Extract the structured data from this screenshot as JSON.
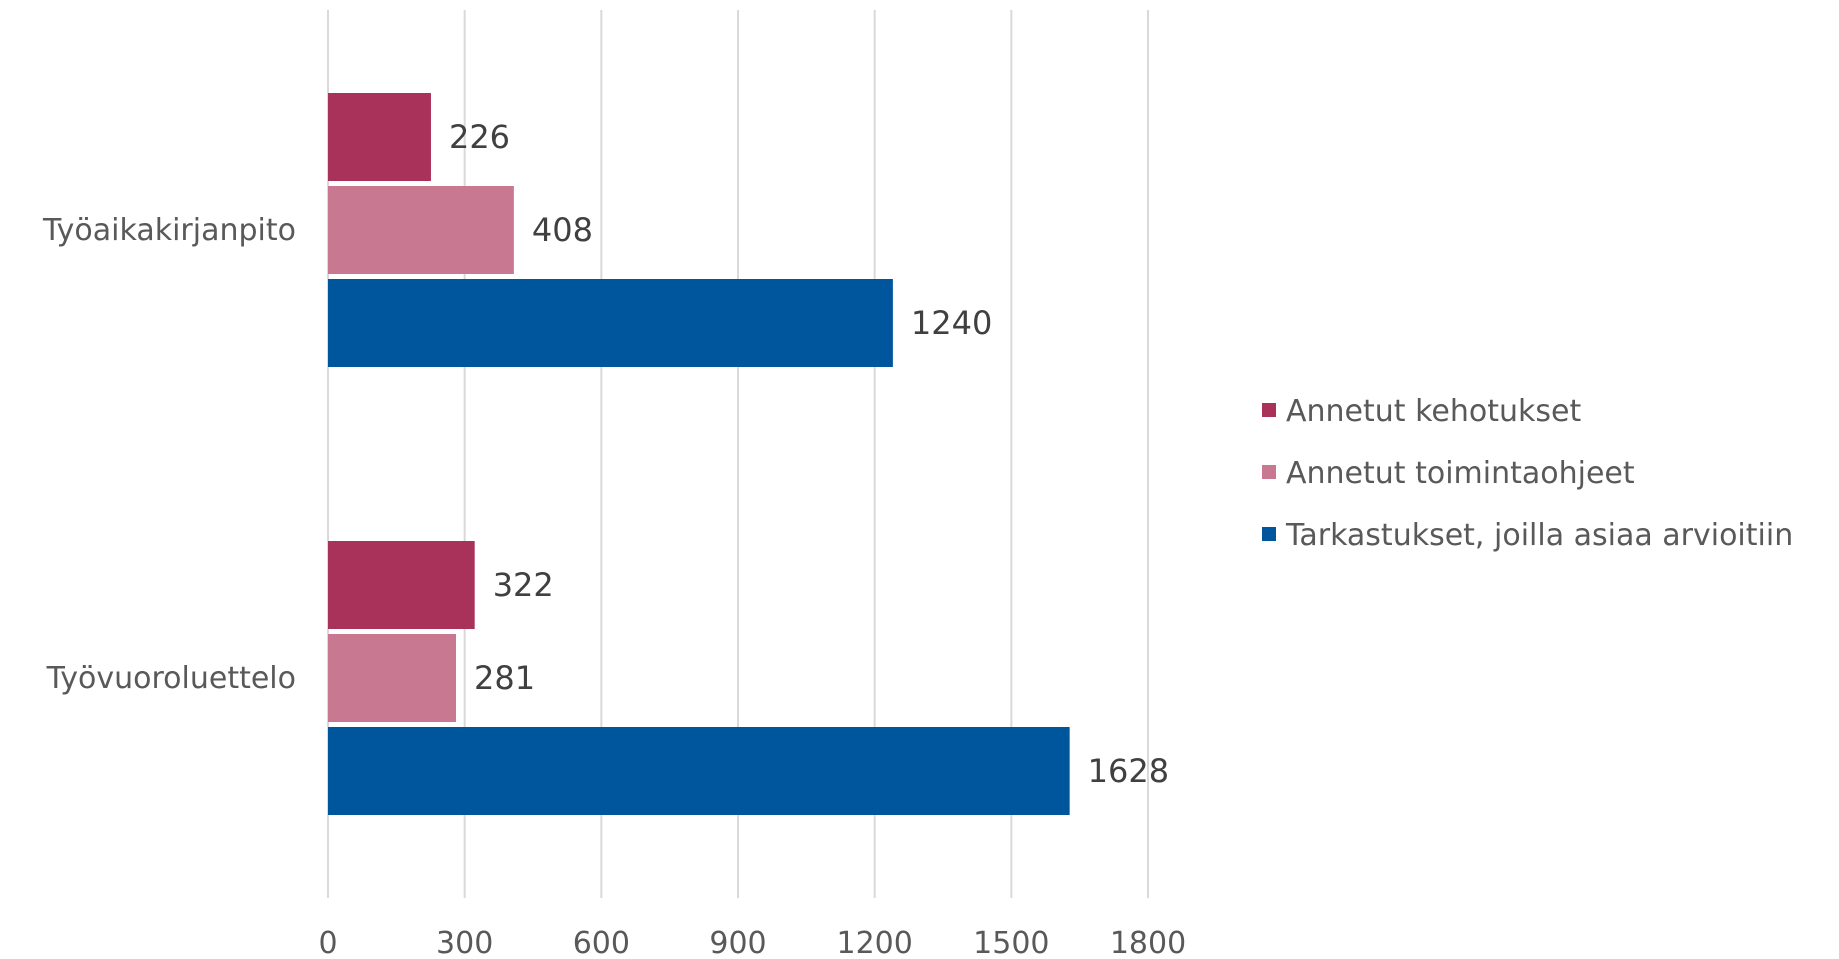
{
  "chart_data": {
    "type": "bar",
    "orientation": "horizontal",
    "categories": [
      "Työaikakirjanpito",
      "Työvuoroluettelo"
    ],
    "series": [
      {
        "name": "Annetut kehotukset",
        "color": "#a83259",
        "values": [
          226,
          322
        ]
      },
      {
        "name": "Annetut toimintaohjeet",
        "color": "#c97891",
        "values": [
          408,
          281
        ]
      },
      {
        "name": "Tarkastukset, joilla asiaa arvioitiin",
        "color": "#00569d",
        "values": [
          1240,
          1628
        ]
      }
    ],
    "xlim": [
      0,
      1800
    ],
    "xticks": [
      "0",
      "300",
      "600",
      "900",
      "1200",
      "1500",
      "1800"
    ],
    "grid": "vertical",
    "legend_position": "right",
    "title": "",
    "xlabel": "",
    "ylabel": ""
  }
}
